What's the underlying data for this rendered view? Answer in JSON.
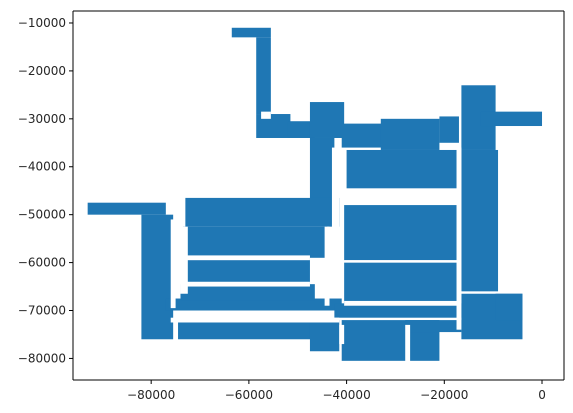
{
  "chart_data": {
    "type": "area",
    "title": "",
    "xlabel": "",
    "ylabel": "",
    "xlim": [
      -96000,
      4500
    ],
    "ylim": [
      -84500,
      -7500
    ],
    "xticks": [
      -80000,
      -60000,
      -40000,
      -20000,
      0
    ],
    "xtick_labels": [
      "−80000",
      "−60000",
      "−40000",
      "−20000",
      "0"
    ],
    "yticks": [
      -10000,
      -20000,
      -30000,
      -40000,
      -50000,
      -60000,
      -70000,
      -80000
    ],
    "ytick_labels": [
      "−10000",
      "−20000",
      "−30000",
      "−40000",
      "−50000",
      "−60000",
      "−70000",
      "−80000"
    ],
    "grid": false,
    "legend": "none",
    "fill_color": "#1f77b4",
    "gap_color": "#ffffff",
    "series": [
      {
        "kind": "filled-regions",
        "regions": [
          {
            "id": "north-wing-top",
            "x": [
              -63500,
              -55500
            ],
            "y": [
              -13000,
              -11000
            ]
          },
          {
            "id": "north-wing-corridor",
            "x": [
              -58500,
              -55500
            ],
            "y": [
              -29000,
              -13000
            ]
          },
          {
            "id": "north-wing-base",
            "x": [
              -58500,
              -51500
            ],
            "y": [
              -34000,
              -29000
            ]
          },
          {
            "id": "north-block-a",
            "x": [
              -52000,
              -46500
            ],
            "y": [
              -34000,
              -30500
            ]
          },
          {
            "id": "north-block-b",
            "x": [
              -47500,
              -40500
            ],
            "y": [
              -34000,
              -26500
            ]
          },
          {
            "id": "north-strip",
            "x": [
              -41000,
              -32500
            ],
            "y": [
              -36000,
              -31000
            ]
          },
          {
            "id": "north-block-c",
            "x": [
              -33000,
              -21000
            ],
            "y": [
              -36500,
              -30000
            ]
          },
          {
            "id": "north-block-d",
            "x": [
              -21000,
              -17000
            ],
            "y": [
              -35000,
              -29500
            ]
          },
          {
            "id": "ne-tower",
            "x": [
              -16500,
              -9500
            ],
            "y": [
              -36500,
              -23000
            ]
          },
          {
            "id": "ne-spur",
            "x": [
              -12500,
              0
            ],
            "y": [
              -31500,
              -28500
            ]
          },
          {
            "id": "west-column",
            "x": [
              -47500,
              -42500
            ],
            "y": [
              -50500,
              -34000
            ]
          },
          {
            "id": "west-wing",
            "x": [
              -93000,
              -77000
            ],
            "y": [
              -50000,
              -47500
            ]
          },
          {
            "id": "west-wing-block",
            "x": [
              -82000,
              -75500
            ],
            "y": [
              -76000,
              -50000
            ]
          },
          {
            "id": "west-wing-corridor",
            "x": [
              -77000,
              -41000
            ],
            "y": [
              -70000,
              -67500
            ]
          },
          {
            "id": "north-inner-row",
            "x": [
              -73000,
              -41500
            ],
            "y": [
              -52500,
              -46500
            ]
          },
          {
            "id": "inner-top-rooms",
            "x": [
              -73500,
              -44000
            ],
            "y": [
              -59000,
              -52500
            ]
          },
          {
            "id": "inner-long-hall",
            "x": [
              -73000,
              -47500
            ],
            "y": [
              -64500,
              -59000
            ]
          },
          {
            "id": "inner-bottom-rooms",
            "x": [
              -74000,
              -46500
            ],
            "y": [
              -68000,
              -64500
            ]
          },
          {
            "id": "central-block-top",
            "x": [
              -40000,
              -17000
            ],
            "y": [
              -44500,
              -36500
            ]
          },
          {
            "id": "central-block",
            "x": [
              -40500,
              -17000
            ],
            "y": [
              -59500,
              -48000
            ]
          },
          {
            "id": "central-block-bottom",
            "x": [
              -40500,
              -17000
            ],
            "y": [
              -68500,
              -60000
            ]
          },
          {
            "id": "central-corridor",
            "x": [
              -42500,
              -16500
            ],
            "y": [
              -71500,
              -68500
            ]
          },
          {
            "id": "east-column",
            "x": [
              -16500,
              -9000
            ],
            "y": [
              -66000,
              -36500
            ]
          },
          {
            "id": "east-low-rooms",
            "x": [
              -16500,
              -4000
            ],
            "y": [
              -76000,
              -66500
            ]
          },
          {
            "id": "east-low-tower",
            "x": [
              -9500,
              -4000
            ],
            "y": [
              -72000,
              -66500
            ]
          },
          {
            "id": "south-rooms-west",
            "x": [
              -74500,
              -42500
            ],
            "y": [
              -76000,
              -72000
            ]
          },
          {
            "id": "south-rooms-east",
            "x": [
              -41000,
              -21000
            ],
            "y": [
              -80500,
              -72000
            ]
          },
          {
            "id": "south-block-c",
            "x": [
              -28000,
              -16500
            ],
            "y": [
              -74500,
              -72000
            ]
          },
          {
            "id": "south-mid-rooms",
            "x": [
              -47500,
              -41500
            ],
            "y": [
              -78500,
              -72000
            ]
          }
        ],
        "gaps": [
          {
            "id": "gap-1",
            "x": [
              -57500,
              -55500
            ],
            "y": [
              -30000,
              -28500
            ]
          },
          {
            "id": "gap-2",
            "x": [
              -43000,
              -41500
            ],
            "y": [
              -56500,
              -36000
            ]
          },
          {
            "id": "gap-3",
            "x": [
              -41000,
              -17000
            ],
            "y": [
              -47500,
              -45000
            ]
          },
          {
            "id": "gap-4",
            "x": [
              -17500,
              -16500
            ],
            "y": [
              -74000,
              -36000
            ]
          },
          {
            "id": "gap-5",
            "x": [
              -76000,
              -75000
            ],
            "y": [
              -69500,
              -51000
            ]
          },
          {
            "id": "gap-6",
            "x": [
              -44500,
              -43500
            ],
            "y": [
              -69000,
              -52500
            ]
          },
          {
            "id": "gap-7",
            "x": [
              -74000,
              -72500
            ],
            "y": [
              -66500,
              -52500
            ]
          },
          {
            "id": "gap-8",
            "x": [
              -73000,
              -47500
            ],
            "y": [
              -59500,
              -58500
            ]
          },
          {
            "id": "gap-9",
            "x": [
              -73000,
              -47500
            ],
            "y": [
              -65000,
              -64000
            ]
          },
          {
            "id": "gap-10",
            "x": [
              -76000,
              -41500
            ],
            "y": [
              -72500,
              -71500
            ]
          },
          {
            "id": "gap-11",
            "x": [
              -40500,
              -17000
            ],
            "y": [
              -60000,
              -59500
            ]
          },
          {
            "id": "gap-12",
            "x": [
              -40500,
              -17000
            ],
            "y": [
              -69000,
              -68000
            ]
          },
          {
            "id": "gap-13",
            "x": [
              -28000,
              -27000
            ],
            "y": [
              -81000,
              -73000
            ]
          },
          {
            "id": "gap-14",
            "x": [
              -41500,
              -40500
            ],
            "y": [
              -77000,
              -73000
            ]
          }
        ]
      }
    ]
  }
}
